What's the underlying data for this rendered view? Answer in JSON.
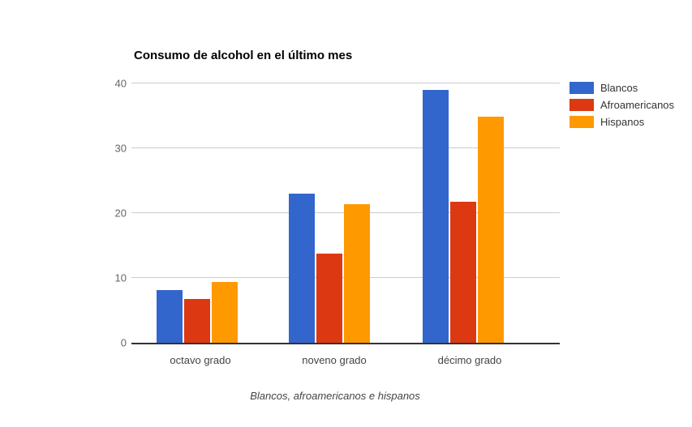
{
  "chart_data": {
    "type": "bar",
    "title": "Consumo de alcohol en el último mes",
    "categories": [
      "octavo grado",
      "noveno grado",
      "décimo grado"
    ],
    "series": [
      {
        "name": "Blancos",
        "color": "#3366CC",
        "values": [
          8.1,
          23.0,
          39.0
        ]
      },
      {
        "name": "Afroamericanos",
        "color": "#DC3912",
        "values": [
          6.7,
          13.8,
          21.7
        ]
      },
      {
        "name": "Hispanos",
        "color": "#FF9900",
        "values": [
          9.4,
          21.4,
          34.9
        ]
      }
    ],
    "xlabel": "Blancos, afroamericanos e hispanos",
    "ylabel": "",
    "ylim": [
      0,
      40
    ],
    "yticks": [
      0,
      10,
      20,
      30,
      40
    ],
    "grid": true,
    "legend_position": "right",
    "background_color": "#FFFFFF"
  }
}
